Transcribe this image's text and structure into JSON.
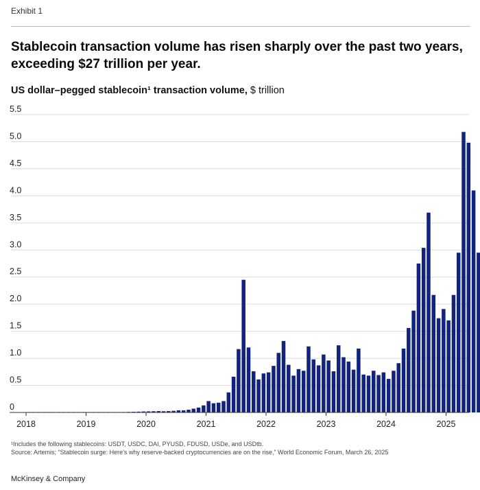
{
  "header": {
    "exhibit": "Exhibit 1",
    "title": "Stablecoin transaction volume has risen sharply over the past two years, exceeding $27 trillion per year.",
    "subtitle_bold": "US dollar–pegged stablecoin¹ transaction volume,",
    "subtitle_unit": " $ trillion"
  },
  "colors": {
    "bar": "#11237f",
    "grid": "#d9d9d9",
    "axis": "#333333"
  },
  "chart_data": {
    "type": "bar",
    "title": "",
    "xlabel": "",
    "ylabel": "$ trillion",
    "ylim": [
      0,
      5.5
    ],
    "yticks": [
      0,
      0.5,
      1.0,
      1.5,
      2.0,
      2.5,
      3.0,
      3.5,
      4.0,
      4.5,
      5.0,
      5.5
    ],
    "ytick_labels": [
      "0",
      "0.5",
      "1.0",
      "1.5",
      "2.0",
      "2.5",
      "3.0",
      "3.5",
      "4.0",
      "4.5",
      "5.0",
      "5.5"
    ],
    "xtick_labels": [
      "2018",
      "2019",
      "2020",
      "2021",
      "2022",
      "2023",
      "2024",
      "2025"
    ],
    "start": "2018-01",
    "frequency": "monthly",
    "grid": "horizontal",
    "values": [
      0.001,
      0.001,
      0.001,
      0.001,
      0.001,
      0.001,
      0.001,
      0.001,
      0.001,
      0.001,
      0.002,
      0.002,
      0.003,
      0.003,
      0.004,
      0.005,
      0.005,
      0.006,
      0.007,
      0.008,
      0.01,
      0.012,
      0.015,
      0.018,
      0.02,
      0.022,
      0.025,
      0.022,
      0.025,
      0.03,
      0.04,
      0.04,
      0.05,
      0.07,
      0.09,
      0.13,
      0.21,
      0.17,
      0.18,
      0.21,
      0.37,
      0.66,
      1.17,
      2.45,
      1.2,
      0.76,
      0.61,
      0.72,
      0.74,
      0.86,
      1.1,
      1.32,
      0.88,
      0.68,
      0.8,
      0.77,
      1.22,
      0.98,
      0.87,
      1.07,
      0.96,
      0.76,
      1.24,
      1.02,
      0.94,
      0.79,
      1.18,
      0.7,
      0.68,
      0.77,
      0.69,
      0.74,
      0.62,
      0.77,
      0.91,
      1.18,
      1.56,
      1.88,
      2.75,
      3.04,
      3.69,
      2.17,
      1.74,
      1.91,
      1.7,
      2.17,
      2.95,
      5.18,
      4.98,
      4.1,
      2.95,
      3.27
    ]
  },
  "footnote": {
    "line1": "¹Includes the following stablecoins: USDT, USDC, DAI, PYUSD, FDUSD, USDe, and USDtb.",
    "line2": "Source: Artemis; “Stablecoin surge: Here’s why reserve-backed cryptocurrencies are on the rise,” World Economic Forum, March 26, 2025"
  },
  "brand": "McKinsey & Company"
}
